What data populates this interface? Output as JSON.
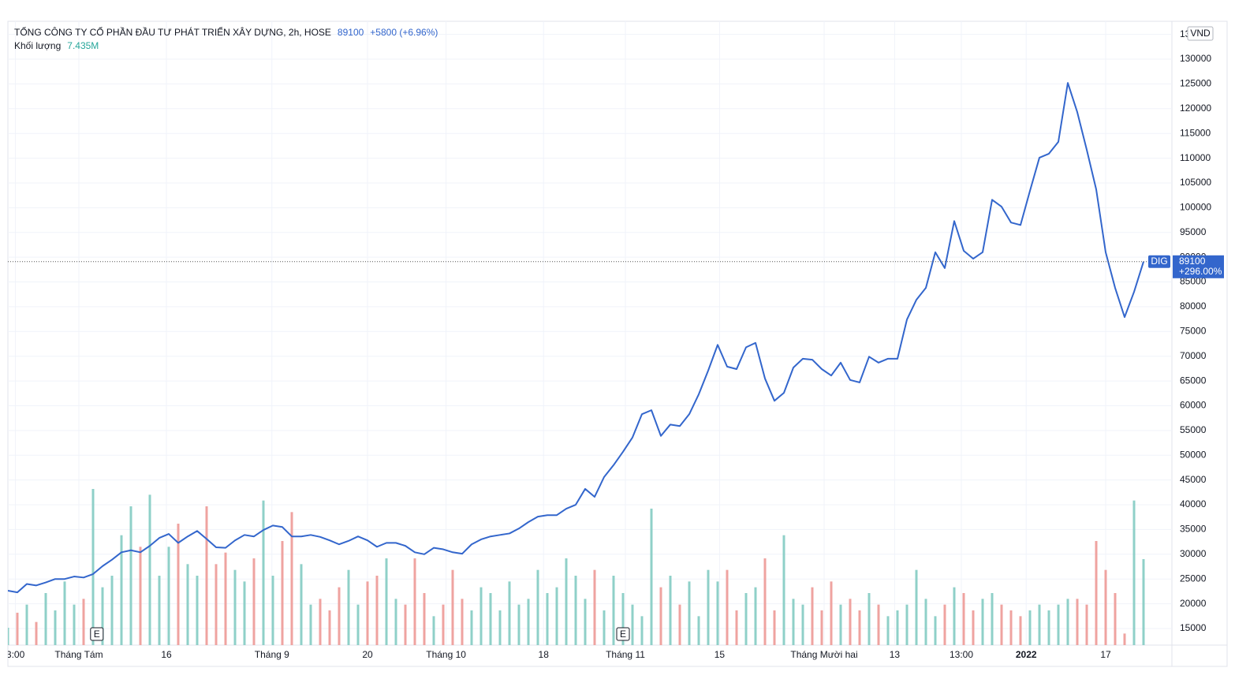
{
  "chart_data": {
    "type": "line",
    "title": "TỔNG CÔNG TY CỔ PHẦN ĐẦU TƯ PHÁT TRIỂN XÂY DỰNG, 2h, HOSE",
    "change_label": "+5800 (+6.96%)",
    "currency": "VND",
    "percent_label": "+296.00%",
    "event_marker": "E",
    "event_positions": [
      9.4,
      65.0
    ],
    "series": [
      {
        "name": "DIG",
        "color": "#3366cc",
        "values": [
          22640,
          22300,
          24000,
          23700,
          24300,
          25000,
          25000,
          25500,
          25300,
          26000,
          27600,
          28900,
          30400,
          30800,
          30400,
          31700,
          33300,
          34100,
          32300,
          33600,
          34700,
          33100,
          31400,
          31300,
          32800,
          33900,
          33600,
          34900,
          35800,
          35500,
          33600,
          33600,
          33900,
          33500,
          32800,
          32000,
          32700,
          33600,
          32800,
          31500,
          32300,
          32300,
          31700,
          30400,
          30000,
          31300,
          31000,
          30400,
          30100,
          32000,
          33000,
          33600,
          33900,
          34200,
          35200,
          36500,
          37600,
          37900,
          37900,
          39200,
          40000,
          43200,
          41600,
          45600,
          48000,
          50700,
          53600,
          58300,
          59100,
          53900,
          56200,
          55900,
          58300,
          62300,
          67100,
          72300,
          67900,
          67400,
          71800,
          72700,
          65500,
          61000,
          62600,
          67700,
          69500,
          69300,
          67400,
          66100,
          68700,
          65200,
          64700,
          69900,
          68700,
          69500,
          69500,
          77400,
          81400,
          83800,
          91000,
          87800,
          97300,
          91300,
          89700,
          91000,
          101600,
          100200,
          97000,
          96500,
          103400,
          110100,
          110900,
          113300,
          125200,
          119300,
          111700,
          103700,
          91000,
          83800,
          77900,
          83000,
          89100
        ]
      }
    ],
    "volume": {
      "name": "Khối lượng",
      "last_label": "7.435M",
      "up_color": "#8fd0c8",
      "down_color": "#efa3a0",
      "values": [
        1.5,
        2.8,
        3.5,
        2.0,
        4.5,
        3.0,
        5.5,
        3.5,
        4.0,
        13.5,
        5.0,
        6.0,
        9.5,
        12.0,
        8.5,
        13.0,
        6.0,
        8.5,
        10.5,
        7.0,
        6.0,
        12.0,
        7.0,
        8.0,
        6.5,
        5.5,
        7.5,
        12.5,
        6.0,
        9.0,
        11.5,
        7.0,
        3.5,
        4.0,
        3.0,
        5.0,
        6.5,
        3.5,
        5.5,
        6.0,
        7.5,
        4.0,
        3.5,
        7.5,
        4.5,
        2.5,
        3.5,
        6.5,
        4.0,
        3.0,
        5.0,
        4.5,
        3.0,
        5.5,
        3.5,
        4.0,
        6.5,
        4.5,
        5.0,
        7.5,
        6.0,
        4.0,
        6.5,
        3.0,
        6.0,
        4.5,
        3.5,
        2.5,
        11.8,
        5.0,
        6.0,
        3.5,
        5.5,
        2.5,
        6.5,
        5.5,
        6.5,
        3.0,
        4.5,
        5.0,
        7.5,
        3.0,
        9.5,
        4.0,
        3.5,
        5.0,
        3.0,
        5.5,
        3.5,
        4.0,
        3.0,
        4.5,
        3.5,
        2.5,
        3.0,
        3.5,
        6.5,
        4.0,
        2.5,
        3.5,
        5.0,
        4.5,
        3.0,
        4.0,
        4.5,
        3.5,
        3.0,
        2.5,
        3.0,
        3.5,
        3.0,
        3.5,
        4.0,
        4.0,
        3.5,
        9.0,
        6.5,
        4.5,
        1.0,
        12.5,
        7.435
      ]
    },
    "xlim": [
      0,
      123
    ],
    "xticks": [
      {
        "value": 0.8,
        "label": "3:00"
      },
      {
        "value": 7.5,
        "label": "Tháng Tám"
      },
      {
        "value": 16.75,
        "label": "16"
      },
      {
        "value": 27.9,
        "label": "Tháng 9"
      },
      {
        "value": 38,
        "label": "20"
      },
      {
        "value": 46.3,
        "label": "Tháng 10"
      },
      {
        "value": 56.6,
        "label": "18"
      },
      {
        "value": 65.25,
        "label": "Tháng 11"
      },
      {
        "value": 75.2,
        "label": "15"
      },
      {
        "value": 86.25,
        "label": "Tháng Mười hai"
      },
      {
        "value": 93.7,
        "label": "13"
      },
      {
        "value": 100.75,
        "label": "13:00"
      },
      {
        "value": 107.6,
        "label": "2022"
      },
      {
        "value": 116,
        "label": "17"
      }
    ],
    "ylim": [
      11650,
      137650
    ],
    "yticks": [
      15000,
      20000,
      25000,
      30000,
      35000,
      40000,
      45000,
      50000,
      55000,
      60000,
      65000,
      70000,
      75000,
      80000,
      85000,
      90000,
      95000,
      100000,
      105000,
      110000,
      115000,
      120000,
      125000,
      130000,
      135000
    ],
    "grid": true
  }
}
